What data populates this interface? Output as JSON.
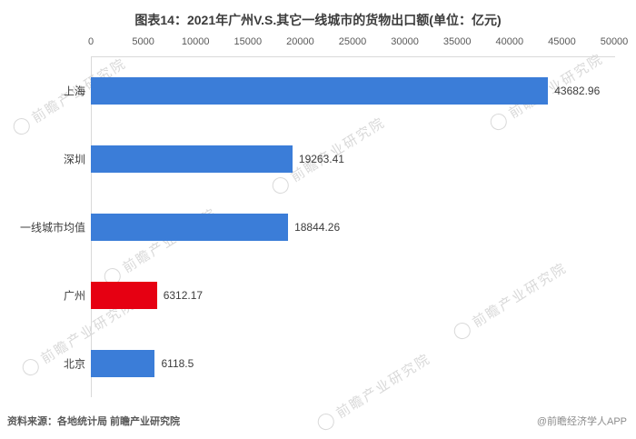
{
  "chart_data": {
    "type": "bar",
    "orientation": "horizontal",
    "title": "图表14：2021年广州V.S.其它一线城市的货物出口额(单位：亿元)",
    "categories": [
      "上海",
      "深圳",
      "一线城市均值",
      "广州",
      "北京"
    ],
    "values": [
      43682.96,
      19263.41,
      18844.26,
      6312.17,
      6118.5
    ],
    "value_labels": [
      "43682.96",
      "19263.41",
      "18844.26",
      "6312.17",
      "6118.5"
    ],
    "bar_colors": [
      "#3b7dd8",
      "#3b7dd8",
      "#3b7dd8",
      "#e60012",
      "#3b7dd8"
    ],
    "highlight_category": "广州",
    "highlight_color": "#e60012",
    "default_color": "#3b7dd8",
    "xlim": [
      0,
      50000
    ],
    "x_ticks": [
      0,
      5000,
      10000,
      15000,
      20000,
      25000,
      30000,
      35000,
      40000,
      45000,
      50000
    ],
    "axis_position": "top",
    "grid": false,
    "legend": "none",
    "xlabel": "",
    "ylabel": ""
  },
  "footer": {
    "source": "资料来源：各地统计局 前瞻产业研究院",
    "credit": "@前瞻经济学人APP"
  },
  "watermark": {
    "text": "前瞻产业研究院",
    "icon": "qianzhan-logo-icon"
  }
}
